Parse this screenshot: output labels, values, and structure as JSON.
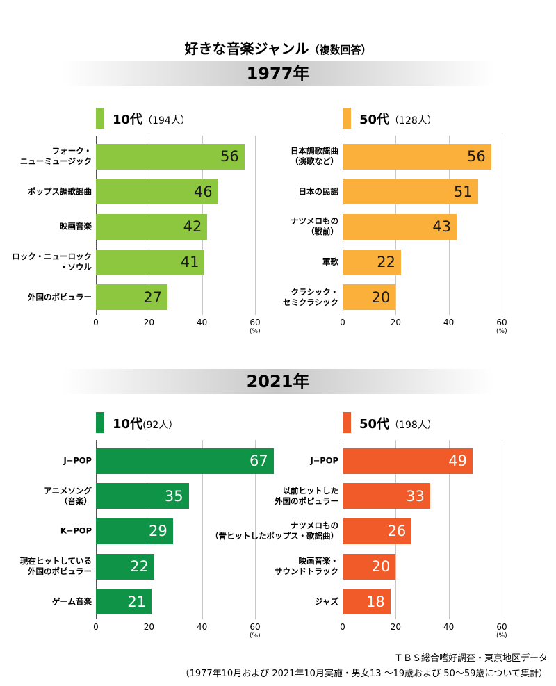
{
  "title": "好きな音楽ジャンル",
  "subtitle": "（複数回答）",
  "sections": [
    "1977年",
    "2021年"
  ],
  "source": [
    "ＴＢＳ総合嗜好調査・東京地区データ",
    "（1977年10月および 2021年10月実施・男女13 ～19歳および 50～59歳について集計）"
  ],
  "chart_data": [
    {
      "type": "bar",
      "orientation": "horizontal",
      "title": "10代",
      "subtitle": "（194人）",
      "categories": [
        "フォーク・\nニューミュージック",
        "ポップス調歌謡曲",
        "映画音楽",
        "ロック・ニューロック\n・ソウル",
        "外国のポピュラー"
      ],
      "values": [
        56,
        46,
        42,
        41,
        27
      ],
      "color": "#8dc63f",
      "value_label_color": "#1a1a1a",
      "xlim": [
        0,
        60
      ],
      "xticks": [
        0,
        20,
        40,
        60
      ],
      "xlabel": "(%)",
      "grid": true
    },
    {
      "type": "bar",
      "orientation": "horizontal",
      "title": "50代",
      "subtitle": "（128人）",
      "categories": [
        "日本調歌謡曲\n（演歌など）",
        "日本の民謡",
        "ナツメロもの\n（戦前）",
        "軍歌",
        "クラシック・\nセミクラシック"
      ],
      "values": [
        56,
        51,
        43,
        22,
        20
      ],
      "color": "#fbb03b",
      "value_label_color": "#1a1a1a",
      "xlim": [
        0,
        60
      ],
      "xticks": [
        0,
        20,
        40,
        60
      ],
      "xlabel": "(%)",
      "grid": true
    },
    {
      "type": "bar",
      "orientation": "horizontal",
      "title": "10代",
      "subtitle": "(92人）",
      "categories": [
        "J−POP",
        "アニメソング\n（音楽）",
        "K−POP",
        "現在ヒットしている\n外国のポピュラー",
        "ゲーム音楽"
      ],
      "values": [
        67,
        35,
        29,
        22,
        21
      ],
      "color": "#0f9447",
      "value_label_color": "#ffffff",
      "xlim": [
        0,
        60
      ],
      "xticks": [
        0,
        20,
        40,
        60
      ],
      "xlabel": "(%)",
      "grid": true
    },
    {
      "type": "bar",
      "orientation": "horizontal",
      "title": "50代",
      "subtitle": "（198人）",
      "categories": [
        "J−POP",
        "以前ヒットした\n外国のポピュラー",
        "ナツメロもの\n（昔ヒットしたポップス・歌謡曲）",
        "映画音楽・\nサウンドトラック",
        "ジャズ"
      ],
      "values": [
        49,
        33,
        26,
        20,
        18
      ],
      "color": "#f15a29",
      "value_label_color": "#ffffff",
      "xlim": [
        0,
        60
      ],
      "xticks": [
        0,
        20,
        40,
        60
      ],
      "xlabel": "(%)",
      "grid": true
    }
  ]
}
